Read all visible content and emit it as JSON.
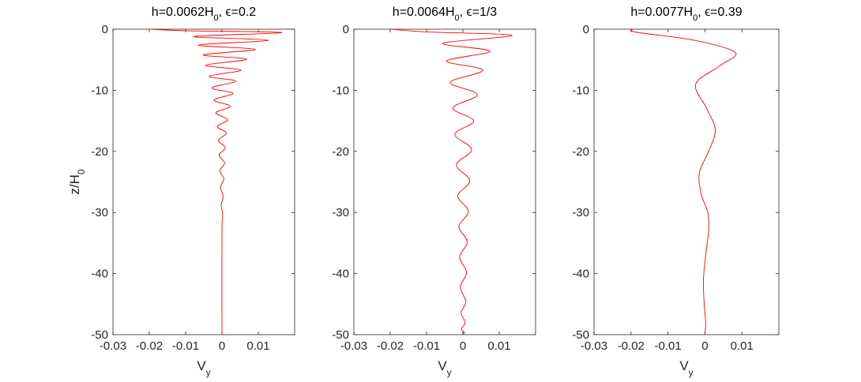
{
  "chart_data": [
    {
      "type": "line",
      "title": "h=0.0062H₀, ϵ=0.2",
      "xlabel": "V_y",
      "ylabel": "z/H₀",
      "xlim": [
        -0.03,
        0.02
      ],
      "ylim": [
        -50,
        0
      ],
      "xticks": [
        "-0.03",
        "-0.02",
        "-0.01",
        "0",
        "0.01"
      ],
      "yticks": [
        "0",
        "-10",
        "-20",
        "-30",
        "-40",
        "-50"
      ],
      "grid": false,
      "line_color": "#ff0000",
      "series": [
        {
          "x": [
            -0.0195,
            -0.01,
            0.0165,
            -0.0078,
            0.0128,
            -0.0065,
            0.0092,
            -0.0052,
            0.0068,
            -0.0045,
            0.0052,
            -0.0035,
            0.0038,
            -0.0028,
            0.003,
            -0.0022,
            0.0022,
            -0.0017,
            0.0016,
            -0.0013,
            0.0012,
            -0.001,
            0.0009,
            -0.0008,
            0.0007,
            -0.0006,
            0.0005,
            -0.0004,
            0.0003,
            -0.0002,
            0.0002,
            0.0,
            0.0
          ],
          "y": [
            0,
            -0.25,
            -0.55,
            -1.2,
            -1.8,
            -2.6,
            -3.3,
            -4.2,
            -4.9,
            -5.9,
            -6.7,
            -7.7,
            -8.5,
            -9.6,
            -10.5,
            -11.6,
            -12.6,
            -13.7,
            -14.8,
            -15.9,
            -17.0,
            -18.2,
            -19.4,
            -20.6,
            -21.9,
            -23.2,
            -24.5,
            -25.9,
            -27.3,
            -28.8,
            -30.4,
            -33.0,
            -50.0
          ]
        }
      ]
    },
    {
      "type": "line",
      "title": "h=0.0064H₀, ϵ=1/3",
      "xlabel": "V_y",
      "ylabel": "",
      "xlim": [
        -0.03,
        0.02
      ],
      "ylim": [
        -50,
        0
      ],
      "xticks": [
        "-0.03",
        "-0.02",
        "-0.01",
        "0",
        "0.01"
      ],
      "yticks": [
        "0",
        "-10",
        "-20",
        "-30",
        "-40",
        "-50"
      ],
      "grid": false,
      "line_color": "#ff0000",
      "series": [
        {
          "x": [
            -0.0195,
            -0.01,
            0.0135,
            -0.0055,
            0.0075,
            -0.0045,
            0.0055,
            -0.0035,
            0.004,
            -0.0028,
            0.003,
            -0.0022,
            0.0024,
            -0.0018,
            0.0019,
            -0.0014,
            0.0015,
            -0.0011,
            0.0012,
            -0.0009,
            0.001,
            -0.0007,
            0.0008,
            -0.0005,
            0.0006,
            -0.0004,
            0.0004,
            0.0
          ],
          "y": [
            0,
            -0.45,
            -1.0,
            -2.3,
            -3.6,
            -5.2,
            -6.7,
            -8.7,
            -10.7,
            -12.9,
            -15.0,
            -17.2,
            -19.7,
            -22.2,
            -24.8,
            -27.3,
            -29.8,
            -32.3,
            -34.8,
            -37.3,
            -39.8,
            -42.2,
            -44.6,
            -46.4,
            -48.0,
            -49.1,
            -49.6,
            -50.0
          ]
        }
      ]
    },
    {
      "type": "line",
      "title": "h=0.0077H₀, ϵ=0.39",
      "xlabel": "V_y",
      "ylabel": "",
      "xlim": [
        -0.03,
        0.02
      ],
      "ylim": [
        -50,
        0
      ],
      "xticks": [
        "-0.03",
        "-0.02",
        "-0.01",
        "0",
        "0.01"
      ],
      "yticks": [
        "0",
        "-10",
        "-20",
        "-30",
        "-40",
        "-50"
      ],
      "grid": false,
      "line_color": "#ff0000",
      "series": [
        {
          "x": [
            -0.0195,
            -0.0185,
            -0.003,
            0.0082,
            0.004,
            -0.0025,
            0.0005,
            0.0028,
            0.001,
            -0.0015,
            -0.001,
            0.0008,
            0.001,
            0.0002,
            -0.0004,
            -0.0002,
            0.0002,
            0.0
          ],
          "y": [
            0,
            -0.5,
            -1.8,
            -3.8,
            -6.0,
            -9.0,
            -13.0,
            -16.5,
            -20.0,
            -23.5,
            -27.0,
            -30.0,
            -33.0,
            -37.0,
            -41.0,
            -45.0,
            -48.0,
            -50.0
          ]
        }
      ]
    }
  ]
}
